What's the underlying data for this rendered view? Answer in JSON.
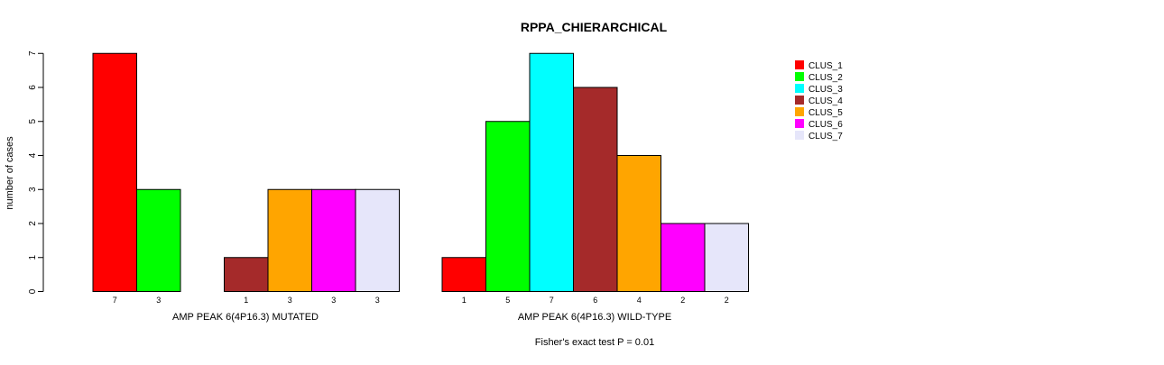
{
  "chart_data": {
    "type": "bar",
    "title": "RPPA_CHIERARCHICAL",
    "ylabel": "number of cases",
    "ylim": [
      0,
      7
    ],
    "yticks": [
      0,
      1,
      2,
      3,
      4,
      5,
      6,
      7
    ],
    "footnote": "Fisher's exact test P = 0.01",
    "legend_position": "top-right",
    "series": [
      {
        "name": "CLUS_1",
        "color": "#ff0000"
      },
      {
        "name": "CLUS_2",
        "color": "#00ff00"
      },
      {
        "name": "CLUS_3",
        "color": "#00ffff"
      },
      {
        "name": "CLUS_4",
        "color": "#a52a2a"
      },
      {
        "name": "CLUS_5",
        "color": "#ffa500"
      },
      {
        "name": "CLUS_6",
        "color": "#ff00ff"
      },
      {
        "name": "CLUS_7",
        "color": "#e6e6fa"
      }
    ],
    "groups": [
      {
        "label": "AMP PEAK  6(4P16.3) MUTATED",
        "values": [
          7,
          3,
          0,
          1,
          3,
          3,
          3
        ],
        "count_labels": [
          "7",
          "3",
          "",
          "1",
          "3",
          "3",
          "3"
        ]
      },
      {
        "label": "AMP PEAK  6(4P16.3) WILD-TYPE",
        "values": [
          1,
          5,
          7,
          6,
          4,
          2,
          2
        ],
        "count_labels": [
          "1",
          "5",
          "7",
          "6",
          "4",
          "2",
          "2"
        ]
      }
    ]
  }
}
